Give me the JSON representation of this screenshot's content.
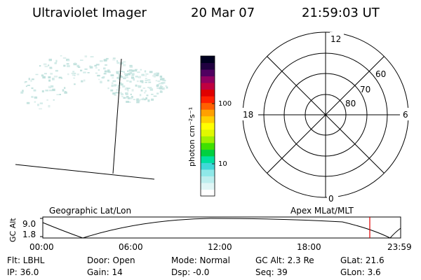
{
  "header": {
    "instrument": "Ultraviolet Imager",
    "date": "20 Mar 07",
    "time": "21:59:03 UT"
  },
  "colorbar": {
    "label": "photon cm⁻²s⁻¹",
    "tick_labels": [
      "100",
      "10"
    ],
    "colors": [
      "#ffffff",
      "#e0f6f6",
      "#bdeeee",
      "#8fe8e8",
      "#40d8d8",
      "#00e0a0",
      "#00d040",
      "#40e000",
      "#a0f000",
      "#e0f800",
      "#ffff00",
      "#ffd000",
      "#ffa000",
      "#ff6000",
      "#ff2000",
      "#e00000",
      "#c00040",
      "#900060",
      "#500060",
      "#200040",
      "#000020"
    ]
  },
  "polar_grid": {
    "mlt_labels": {
      "top": "12",
      "left": "18",
      "right": "6",
      "bottom": "0"
    },
    "lat_labels": [
      "60",
      "70",
      "80"
    ]
  },
  "orbit": {
    "y_axis_label": "GC Alt",
    "y_ticks": [
      "9.0",
      "1.8"
    ],
    "left_caption": "Geographic Lat/Lon",
    "right_caption": "Apex MLat/MLT",
    "time_ticks": [
      "00:00",
      "06:00",
      "12:00",
      "18:00",
      "23:59"
    ],
    "marker_color": "#e00000"
  },
  "status": {
    "filter": "Flt: LBHL",
    "ip": "IP: 36.0",
    "door": "Door: Open",
    "gain": "Gain: 14",
    "mode": "Mode: Normal",
    "dsp": "Dsp:    -0.0",
    "gc_alt": "GC Alt: 2.3 Re",
    "seq": "Seq: 39",
    "glat": "GLat:  21.6",
    "glon": "GLon:    3.6"
  }
}
